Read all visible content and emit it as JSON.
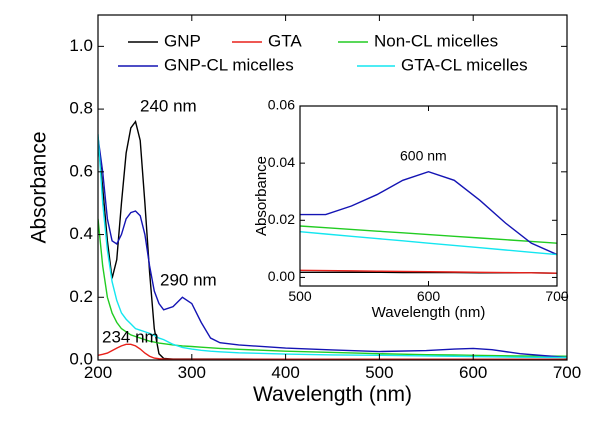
{
  "chart_data": [
    {
      "type": "line",
      "xlabel": "Wavelength (nm)",
      "ylabel": "Absorbance",
      "annotations": [
        "240 nm",
        "290 nm",
        "234 nm"
      ],
      "x": [
        200,
        205,
        210,
        215,
        220,
        225,
        230,
        235,
        240,
        245,
        250,
        255,
        260,
        265,
        270,
        280,
        290,
        300,
        310,
        320,
        330,
        350,
        400,
        450,
        500,
        550,
        580,
        600,
        620,
        650,
        700
      ],
      "xlim": [
        200,
        700
      ],
      "xticks": [
        200,
        300,
        400,
        500,
        600,
        700
      ],
      "ylim": [
        0,
        1.1
      ],
      "yticks": [
        {
          "value": 0,
          "label": "0.0"
        },
        {
          "value": 0.2,
          "label": "0.2"
        },
        {
          "value": 0.4,
          "label": "0.4"
        },
        {
          "value": 0.6,
          "label": "0.6"
        },
        {
          "value": 0.8,
          "label": "0.8"
        },
        {
          "value": 1,
          "label": "1.0"
        }
      ],
      "series": [
        {
          "name": "GNP",
          "color": "#000000",
          "values": [
            0.7,
            0.55,
            0.38,
            0.26,
            0.32,
            0.5,
            0.66,
            0.74,
            0.76,
            0.7,
            0.5,
            0.28,
            0.1,
            0.02,
            0.005,
            0.003,
            0.003,
            0.003,
            0.003,
            0.003,
            0.003,
            0.003,
            0.002,
            0.002,
            0.002,
            0.002,
            0.002,
            0.002,
            0.002,
            0.002,
            0.002
          ]
        },
        {
          "name": "GTA",
          "color": "#e8201a",
          "values": [
            0.015,
            0.018,
            0.022,
            0.03,
            0.038,
            0.045,
            0.05,
            0.05,
            0.045,
            0.035,
            0.022,
            0.012,
            0.006,
            0.004,
            0.003,
            0.002,
            0.002,
            0.002,
            0.002,
            0.002,
            0.002,
            0.002,
            0.002,
            0.002,
            0.002,
            0.002,
            0.002,
            0.002,
            0.002,
            0.002,
            0.002
          ]
        },
        {
          "name": "Non-CL micelles",
          "color": "#22cc22",
          "values": [
            0.45,
            0.3,
            0.2,
            0.15,
            0.12,
            0.1,
            0.09,
            0.08,
            0.075,
            0.07,
            0.065,
            0.06,
            0.057,
            0.054,
            0.052,
            0.048,
            0.045,
            0.043,
            0.041,
            0.039,
            0.037,
            0.034,
            0.028,
            0.024,
            0.02,
            0.017,
            0.016,
            0.015,
            0.014,
            0.013,
            0.012
          ]
        },
        {
          "name": "GNP-CL micelles",
          "color": "#1414b4",
          "values": [
            0.71,
            0.6,
            0.45,
            0.38,
            0.37,
            0.4,
            0.45,
            0.47,
            0.475,
            0.46,
            0.4,
            0.3,
            0.22,
            0.18,
            0.16,
            0.17,
            0.2,
            0.18,
            0.12,
            0.07,
            0.055,
            0.048,
            0.038,
            0.032,
            0.027,
            0.03,
            0.035,
            0.037,
            0.033,
            0.02,
            0.008
          ]
        },
        {
          "name": "GTA-CL micelles",
          "color": "#14e6f0",
          "values": [
            0.72,
            0.5,
            0.35,
            0.25,
            0.19,
            0.15,
            0.13,
            0.115,
            0.1,
            0.095,
            0.09,
            0.085,
            0.078,
            0.07,
            0.065,
            0.05,
            0.04,
            0.035,
            0.031,
            0.028,
            0.026,
            0.023,
            0.019,
            0.016,
            0.015,
            0.013,
            0.012,
            0.011,
            0.01,
            0.009,
            0.008
          ]
        }
      ]
    },
    {
      "type": "line",
      "xlabel": "Wavelength (nm)",
      "ylabel": "Absorbance",
      "annotations": [
        "600 nm"
      ],
      "x": [
        500,
        520,
        540,
        560,
        580,
        600,
        620,
        640,
        660,
        680,
        700
      ],
      "xlim": [
        500,
        700
      ],
      "xticks": [
        500,
        600,
        700
      ],
      "ylim": [
        -0.003,
        0.06
      ],
      "yticks": [
        {
          "value": 0,
          "label": "0.00"
        },
        {
          "value": 0.02,
          "label": "0.02"
        },
        {
          "value": 0.04,
          "label": "0.04"
        },
        {
          "value": 0.06,
          "label": "0.06"
        }
      ],
      "series": [
        {
          "color": "#000000",
          "values": [
            0.0018,
            0.0018,
            0.0018,
            0.0018,
            0.0017,
            0.0017,
            0.0017,
            0.0016,
            0.0016,
            0.0016,
            0.0015
          ]
        },
        {
          "color": "#e8201a",
          "values": [
            0.0025,
            0.0024,
            0.0023,
            0.0022,
            0.0021,
            0.002,
            0.0019,
            0.0018,
            0.0017,
            0.0016,
            0.0015
          ]
        },
        {
          "color": "#22cc22",
          "values": [
            0.018,
            0.0174,
            0.0168,
            0.0162,
            0.0156,
            0.015,
            0.0144,
            0.0138,
            0.0132,
            0.0126,
            0.012
          ]
        },
        {
          "color": "#1414b4",
          "values": [
            0.022,
            0.022,
            0.025,
            0.029,
            0.034,
            0.037,
            0.034,
            0.027,
            0.019,
            0.012,
            0.008
          ]
        },
        {
          "color": "#14e6f0",
          "values": [
            0.016,
            0.0152,
            0.0144,
            0.0136,
            0.0128,
            0.012,
            0.0112,
            0.0104,
            0.0096,
            0.0088,
            0.008
          ]
        }
      ]
    }
  ]
}
